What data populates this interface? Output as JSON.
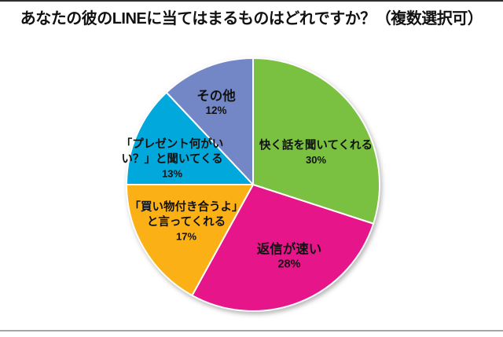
{
  "title": "あなたの彼のLINEに当てはまるものはどれですか？（複数選択可）",
  "colors": {
    "background": "#ffffff",
    "top_border": "#2e2e2e",
    "bottom_divider": "#a6a6a6",
    "slice_separator": "#ffffff",
    "label_text": "#111111"
  },
  "chart_data": {
    "type": "pie",
    "title": "あなたの彼のLINEに当てはまるものはどれですか？（複数選択可）",
    "categories": [
      "快く話を聞いてくれる",
      "返信が速い",
      "「買い物付き合うよ」と言ってくれる",
      "「プレゼント何がいい？」と聞いてくる",
      "その他"
    ],
    "values": [
      30,
      28,
      17,
      13,
      12
    ],
    "unit": "%",
    "start_angle_deg": 0,
    "direction": "clockwise",
    "legend": "none",
    "labels_inside": true,
    "slices": [
      {
        "label_lines": [
          "快く話を聞いてくれる"
        ],
        "value": 30,
        "pct_label": "30%",
        "color": "#7AC142"
      },
      {
        "label_lines": [
          "返信が速い"
        ],
        "value": 28,
        "pct_label": "28%",
        "color": "#E7158A"
      },
      {
        "label_lines": [
          "「買い物付き合うよ」",
          "と言ってくれる"
        ],
        "value": 17,
        "pct_label": "17%",
        "color": "#FBB116"
      },
      {
        "label_lines": [
          "「プレゼント何がい",
          "い？」と聞いてくる"
        ],
        "value": 13,
        "pct_label": "13%",
        "color": "#00A8DC"
      },
      {
        "label_lines": [
          "その他"
        ],
        "value": 12,
        "pct_label": "12%",
        "color": "#7387C6"
      }
    ]
  }
}
